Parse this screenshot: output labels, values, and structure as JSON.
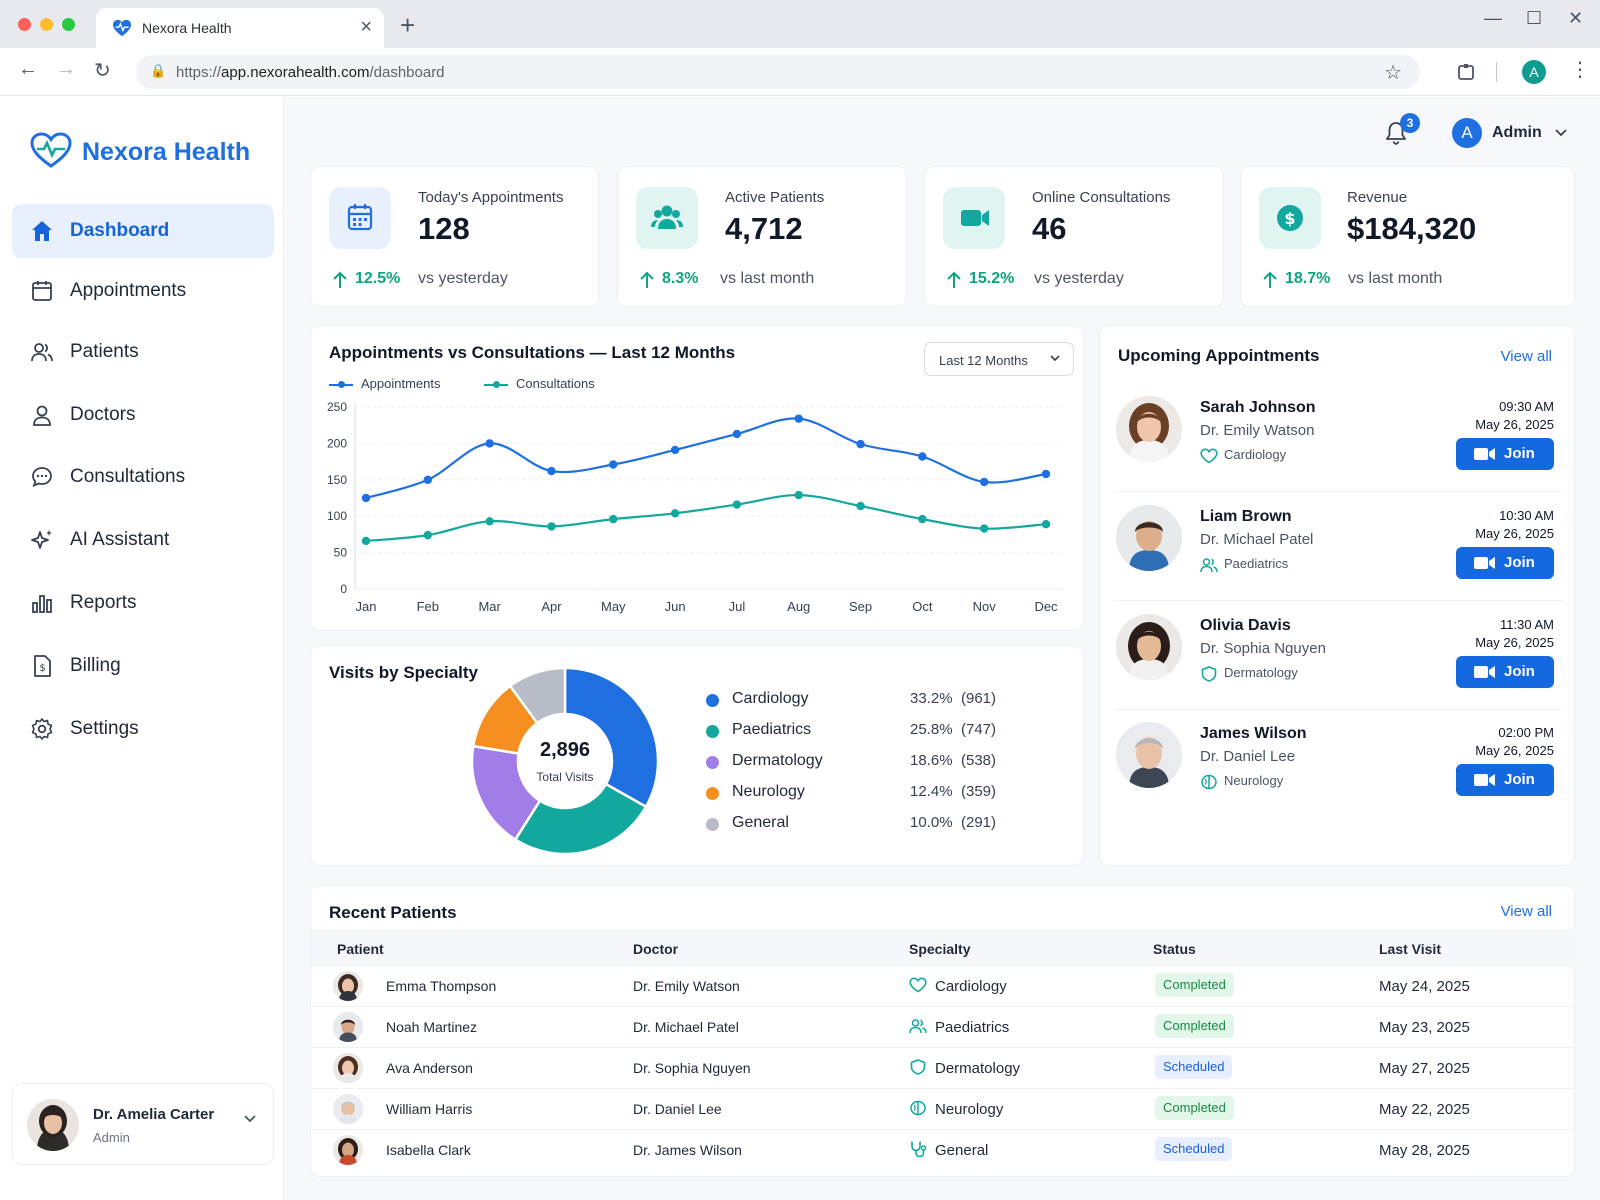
{
  "browser": {
    "tab_title": "Nexora Health",
    "url_prefix": "https://",
    "url_host": "app.nexorahealth.com",
    "url_path": "/dashboard",
    "profile_initial": "A"
  },
  "brand": {
    "name": "Nexora Health",
    "color": "#1e6fe0"
  },
  "sidebar": {
    "items": [
      {
        "label": "Dashboard",
        "icon": "home-icon",
        "active": true
      },
      {
        "label": "Appointments",
        "icon": "calendar-icon"
      },
      {
        "label": "Patients",
        "icon": "users-icon"
      },
      {
        "label": "Doctors",
        "icon": "user-icon"
      },
      {
        "label": "Consultations",
        "icon": "chat-icon"
      },
      {
        "label": "AI Assistant",
        "icon": "sparkle-icon"
      },
      {
        "label": "Reports",
        "icon": "bar-chart-icon"
      },
      {
        "label": "Billing",
        "icon": "invoice-icon"
      },
      {
        "label": "Settings",
        "icon": "gear-icon"
      }
    ],
    "user": {
      "name": "Dr. Amelia Carter",
      "role": "Admin"
    }
  },
  "header": {
    "notifications": "3",
    "admin_initial": "A",
    "admin_name": "Admin"
  },
  "stats": [
    {
      "label": "Today's Appointments",
      "value": "128",
      "delta": "12.5%",
      "note": "vs yesterday",
      "icon": "calendar-icon"
    },
    {
      "label": "Active Patients",
      "value": "4,712",
      "delta": "8.3%",
      "note": "vs last month",
      "icon": "users-icon"
    },
    {
      "label": "Online Consultations",
      "value": "46",
      "delta": "15.2%",
      "note": "vs yesterday",
      "icon": "video-icon"
    },
    {
      "label": "Revenue",
      "value": "$184,320",
      "delta": "18.7%",
      "note": "vs last month",
      "icon": "dollar-icon"
    }
  ],
  "line_panel": {
    "title": "Appointments vs Consultations — Last 12 Months",
    "range_label": "Last 12 Months"
  },
  "donut_panel": {
    "title": "Visits by Specialty",
    "total": "2,896",
    "total_label": "Total Visits"
  },
  "chart_data": [
    {
      "type": "line",
      "title": "Appointments vs Consultations — Last 12 Months",
      "categories": [
        "Jan",
        "Feb",
        "Mar",
        "Apr",
        "May",
        "Jun",
        "Jul",
        "Aug",
        "Sep",
        "Oct",
        "Nov",
        "Dec"
      ],
      "series": [
        {
          "name": "Appointments",
          "color": "#1e6fe0",
          "values": [
            125,
            150,
            200,
            162,
            171,
            191,
            213,
            234,
            199,
            182,
            147,
            158
          ]
        },
        {
          "name": "Consultations",
          "color": "#12a89d",
          "values": [
            66,
            74,
            93,
            86,
            96,
            104,
            116,
            129,
            114,
            96,
            83,
            89
          ]
        }
      ],
      "y_ticks": [
        0,
        50,
        100,
        150,
        200,
        250
      ],
      "ylim": [
        0,
        250
      ],
      "grid": true,
      "legend": "top-left"
    },
    {
      "type": "pie",
      "title": "Visits by Specialty",
      "slices": [
        {
          "label": "Cardiology",
          "percent": "33.2%",
          "count": "(961)",
          "value": 961,
          "color": "#1e6fe0"
        },
        {
          "label": "Paediatrics",
          "percent": "25.8%",
          "count": "(747)",
          "value": 747,
          "color": "#12a89d"
        },
        {
          "label": "Dermatology",
          "percent": "18.6%",
          "count": "(538)",
          "value": 538,
          "color": "#a17de8"
        },
        {
          "label": "Neurology",
          "percent": "12.4%",
          "count": "(359)",
          "value": 359,
          "color": "#f59020"
        },
        {
          "label": "General",
          "percent": "10.0%",
          "count": "(291)",
          "value": 291,
          "color": "#b8bcc6"
        }
      ],
      "legend": "right"
    }
  ],
  "upcoming": {
    "title": "Upcoming Appointments",
    "view_all": "View all",
    "join_label": "Join",
    "items": [
      {
        "patient": "Sarah Johnson",
        "doctor": "Dr. Emily Watson",
        "specialty": "Cardiology",
        "icon": "heart-icon",
        "time": "09:30 AM",
        "date": "May 26, 2025"
      },
      {
        "patient": "Liam Brown",
        "doctor": "Dr. Michael Patel",
        "specialty": "Paediatrics",
        "icon": "users-icon",
        "time": "10:30 AM",
        "date": "May 26, 2025"
      },
      {
        "patient": "Olivia Davis",
        "doctor": "Dr. Sophia Nguyen",
        "specialty": "Dermatology",
        "icon": "shield-icon",
        "time": "11:30 AM",
        "date": "May 26, 2025"
      },
      {
        "patient": "James Wilson",
        "doctor": "Dr. Daniel Lee",
        "specialty": "Neurology",
        "icon": "brain-icon",
        "time": "02:00 PM",
        "date": "May 26, 2025"
      }
    ]
  },
  "recent": {
    "title": "Recent Patients",
    "view_all": "View all",
    "columns": [
      "Patient",
      "Doctor",
      "Specialty",
      "Status",
      "Last Visit"
    ],
    "rows": [
      {
        "patient": "Emma Thompson",
        "doctor": "Dr. Emily Watson",
        "specialty": "Cardiology",
        "icon": "heart-icon",
        "status": "Completed",
        "last_visit": "May 24, 2025"
      },
      {
        "patient": "Noah Martinez",
        "doctor": "Dr. Michael Patel",
        "specialty": "Paediatrics",
        "icon": "users-icon",
        "status": "Completed",
        "last_visit": "May 23, 2025"
      },
      {
        "patient": "Ava Anderson",
        "doctor": "Dr. Sophia Nguyen",
        "specialty": "Dermatology",
        "icon": "shield-icon",
        "status": "Scheduled",
        "last_visit": "May 27, 2025"
      },
      {
        "patient": "William Harris",
        "doctor": "Dr. Daniel Lee",
        "specialty": "Neurology",
        "icon": "brain-icon",
        "status": "Completed",
        "last_visit": "May 22, 2025"
      },
      {
        "patient": "Isabella Clark",
        "doctor": "Dr. James Wilson",
        "specialty": "General",
        "icon": "stethoscope-icon",
        "status": "Scheduled",
        "last_visit": "May 28, 2025"
      }
    ]
  }
}
